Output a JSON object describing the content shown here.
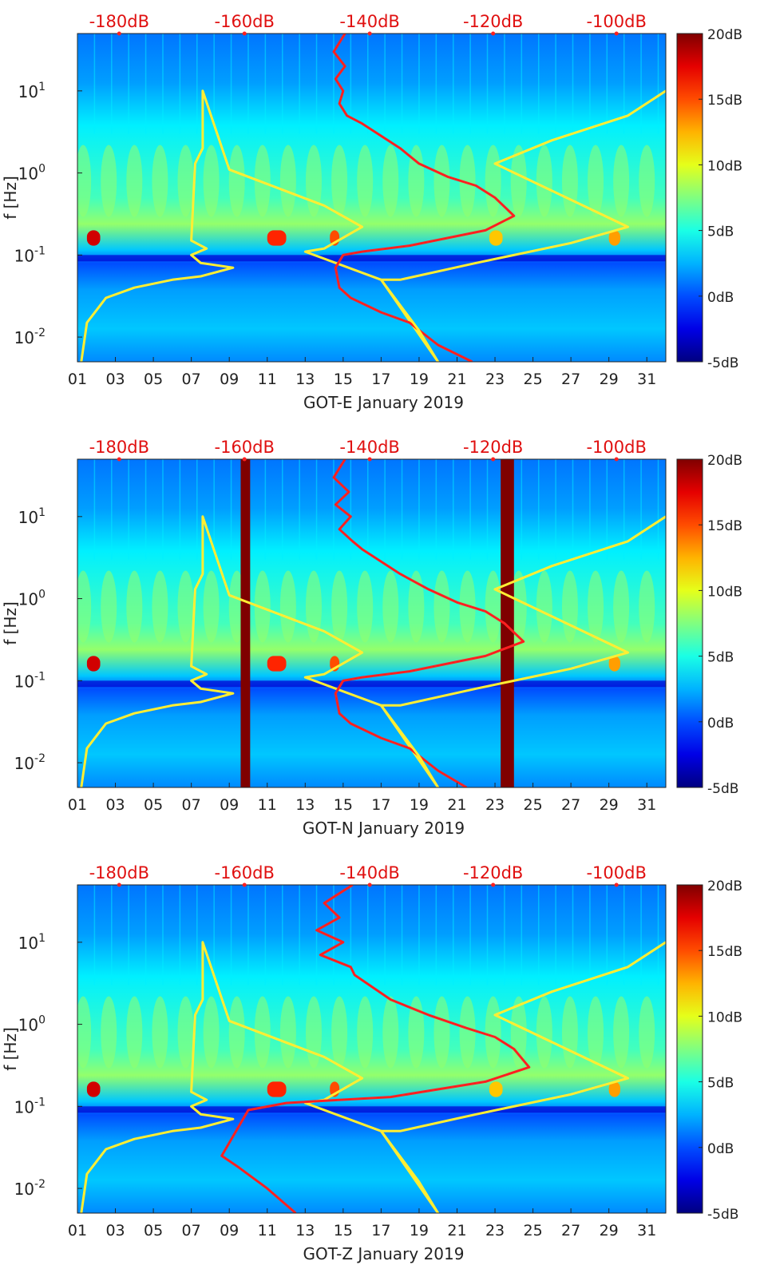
{
  "chart_data": [
    {
      "type": "heatmap",
      "title": "",
      "xlabel": "GOT-E January 2019",
      "ylabel": "f [Hz]",
      "x_ticks": [
        "01",
        "03",
        "05",
        "07",
        "09",
        "11",
        "13",
        "15",
        "17",
        "19",
        "21",
        "23",
        "25",
        "27",
        "29",
        "31"
      ],
      "xlim": [
        1,
        32
      ],
      "yscale": "log",
      "ylim": [
        0.005,
        50
      ],
      "y_ticks": [
        {
          "base": "10",
          "exp": "-2"
        },
        {
          "base": "10",
          "exp": "-1"
        },
        {
          "base": "10",
          "exp": "0"
        },
        {
          "base": "10",
          "exp": "1"
        }
      ],
      "y_tick_values": [
        0.01,
        0.1,
        1,
        10
      ],
      "colorbar_ticks": [
        "-5dB",
        "0dB",
        "5dB",
        "10dB",
        "15dB",
        "20dB"
      ],
      "colorbar_range": [
        -5,
        20
      ],
      "top_axis_labels": [
        "-180dB",
        "-160dB",
        "-140dB",
        "-120dB",
        "-100dB"
      ],
      "top_axis_day_positions": [
        3.2,
        9.8,
        16.4,
        22.9,
        29.4
      ],
      "heat_bands": [
        {
          "from": 1.5,
          "to": 2.2,
          "level": 18
        },
        {
          "from": 11.0,
          "to": 12.0,
          "level": 16
        },
        {
          "from": 14.3,
          "to": 14.8,
          "level": 15
        },
        {
          "from": 22.7,
          "to": 23.4,
          "level": 12
        },
        {
          "from": 29.0,
          "to": 29.6,
          "level": 13
        }
      ],
      "dropouts": [],
      "series": [
        {
          "color": "#ffee33",
          "x": [
            1.2,
            1.5,
            2.5,
            4,
            6,
            7.5,
            9.2,
            7.5,
            7,
            7.8,
            7,
            7.2,
            7.6,
            7.6,
            9,
            14,
            16,
            14,
            13,
            17,
            20
          ],
          "y": [
            0.005,
            0.015,
            0.03,
            0.04,
            0.05,
            0.055,
            0.07,
            0.08,
            0.1,
            0.12,
            0.15,
            1.3,
            2,
            10,
            1.1,
            0.4,
            0.22,
            0.12,
            0.11,
            0.05,
            0.005
          ]
        },
        {
          "color": "#ff2020",
          "x": [
            15.1,
            14.5,
            15.1,
            14.6,
            15,
            14.8,
            15.2,
            16,
            18,
            19,
            20.5,
            22,
            23,
            24,
            22.5,
            18.5,
            16,
            15,
            14.6,
            14.8,
            15.4,
            17,
            18.5,
            20,
            21.8
          ],
          "y": [
            50,
            30,
            20,
            14,
            10,
            7,
            5,
            4,
            2,
            1.3,
            0.9,
            0.7,
            0.5,
            0.3,
            0.2,
            0.13,
            0.11,
            0.1,
            0.07,
            0.04,
            0.03,
            0.02,
            0.015,
            0.008,
            0.005
          ]
        },
        {
          "color": "#ffee33",
          "x": [
            32,
            30,
            26,
            23,
            30,
            27,
            22,
            18,
            17,
            19,
            20
          ],
          "y": [
            10,
            5,
            2.5,
            1.3,
            0.22,
            0.14,
            0.08,
            0.05,
            0.05,
            0.012,
            0.005
          ]
        }
      ]
    },
    {
      "type": "heatmap",
      "title": "",
      "xlabel": "GOT-N January 2019",
      "ylabel": "f [Hz]",
      "x_ticks": [
        "01",
        "03",
        "05",
        "07",
        "09",
        "11",
        "13",
        "15",
        "17",
        "19",
        "21",
        "23",
        "25",
        "27",
        "29",
        "31"
      ],
      "xlim": [
        1,
        32
      ],
      "yscale": "log",
      "ylim": [
        0.005,
        50
      ],
      "y_ticks": [
        {
          "base": "10",
          "exp": "-2"
        },
        {
          "base": "10",
          "exp": "-1"
        },
        {
          "base": "10",
          "exp": "0"
        },
        {
          "base": "10",
          "exp": "1"
        }
      ],
      "y_tick_values": [
        0.01,
        0.1,
        1,
        10
      ],
      "colorbar_ticks": [
        "-5dB",
        "0dB",
        "5dB",
        "10dB",
        "15dB",
        "20dB"
      ],
      "colorbar_range": [
        -5,
        20
      ],
      "top_axis_labels": [
        "-180dB",
        "-160dB",
        "-140dB",
        "-120dB",
        "-100dB"
      ],
      "top_axis_day_positions": [
        3.2,
        9.8,
        16.4,
        22.9,
        29.4
      ],
      "heat_bands": [
        {
          "from": 1.5,
          "to": 2.2,
          "level": 18
        },
        {
          "from": 11.0,
          "to": 12.0,
          "level": 16
        },
        {
          "from": 14.3,
          "to": 14.8,
          "level": 15
        },
        {
          "from": 29.0,
          "to": 29.6,
          "level": 13
        }
      ],
      "dropouts": [
        {
          "from": 9.6,
          "to": 10.1
        },
        {
          "from": 23.3,
          "to": 24.0
        }
      ],
      "series": [
        {
          "color": "#ffee33",
          "x": [
            1.2,
            1.5,
            2.5,
            4,
            6,
            7.5,
            9.2,
            7.5,
            7,
            7.8,
            7,
            7.2,
            7.6,
            7.6,
            9,
            14,
            16,
            14,
            13,
            17,
            20
          ],
          "y": [
            0.005,
            0.015,
            0.03,
            0.04,
            0.05,
            0.055,
            0.07,
            0.08,
            0.1,
            0.12,
            0.15,
            1.3,
            2,
            10,
            1.1,
            0.4,
            0.22,
            0.12,
            0.11,
            0.05,
            0.005
          ]
        },
        {
          "color": "#ff2020",
          "x": [
            15.1,
            14.5,
            15.3,
            14.6,
            15.4,
            14.8,
            15.5,
            16,
            18,
            19.5,
            21,
            22.5,
            23.5,
            24.5,
            22.5,
            18.5,
            16,
            15,
            14.6,
            14.8,
            15.4,
            17,
            18.5,
            20,
            21.5
          ],
          "y": [
            50,
            30,
            20,
            14,
            10,
            7,
            5,
            4,
            2,
            1.3,
            0.9,
            0.7,
            0.5,
            0.3,
            0.2,
            0.13,
            0.11,
            0.1,
            0.07,
            0.04,
            0.03,
            0.02,
            0.015,
            0.008,
            0.005
          ]
        },
        {
          "color": "#ffee33",
          "x": [
            32,
            30,
            26,
            23,
            30,
            27,
            22,
            18,
            17,
            19,
            20
          ],
          "y": [
            10,
            5,
            2.5,
            1.3,
            0.22,
            0.14,
            0.08,
            0.05,
            0.05,
            0.012,
            0.005
          ]
        }
      ]
    },
    {
      "type": "heatmap",
      "title": "",
      "xlabel": "GOT-Z January 2019",
      "ylabel": "f [Hz]",
      "x_ticks": [
        "01",
        "03",
        "05",
        "07",
        "09",
        "11",
        "13",
        "15",
        "17",
        "19",
        "21",
        "23",
        "25",
        "27",
        "29",
        "31"
      ],
      "xlim": [
        1,
        32
      ],
      "yscale": "log",
      "ylim": [
        0.005,
        50
      ],
      "y_ticks": [
        {
          "base": "10",
          "exp": "-2"
        },
        {
          "base": "10",
          "exp": "-1"
        },
        {
          "base": "10",
          "exp": "0"
        },
        {
          "base": "10",
          "exp": "1"
        }
      ],
      "y_tick_values": [
        0.01,
        0.1,
        1,
        10
      ],
      "colorbar_ticks": [
        "-5dB",
        "0dB",
        "5dB",
        "10dB",
        "15dB",
        "20dB"
      ],
      "colorbar_range": [
        -5,
        20
      ],
      "top_axis_labels": [
        "-180dB",
        "-160dB",
        "-140dB",
        "-120dB",
        "-100dB"
      ],
      "top_axis_day_positions": [
        3.2,
        9.8,
        16.4,
        22.9,
        29.4
      ],
      "heat_bands": [
        {
          "from": 1.5,
          "to": 2.2,
          "level": 18
        },
        {
          "from": 11.0,
          "to": 12.0,
          "level": 16
        },
        {
          "from": 14.3,
          "to": 14.8,
          "level": 15
        },
        {
          "from": 22.7,
          "to": 23.4,
          "level": 12
        },
        {
          "from": 29.0,
          "to": 29.6,
          "level": 13
        }
      ],
      "dropouts": [],
      "series": [
        {
          "color": "#ffee33",
          "x": [
            1.2,
            1.5,
            2.5,
            4,
            6,
            7.5,
            9.2,
            7.5,
            7,
            7.8,
            7,
            7.2,
            7.6,
            7.6,
            9,
            14,
            16,
            14,
            13,
            17,
            20
          ],
          "y": [
            0.005,
            0.015,
            0.03,
            0.04,
            0.05,
            0.055,
            0.07,
            0.08,
            0.1,
            0.12,
            0.15,
            1.3,
            2,
            10,
            1.1,
            0.4,
            0.22,
            0.12,
            0.11,
            0.05,
            0.005
          ]
        },
        {
          "color": "#ff2020",
          "x": [
            15.5,
            14,
            14.8,
            13.6,
            15,
            13.8,
            15.4,
            15.6,
            17.5,
            19.5,
            21.5,
            23,
            24,
            24.8,
            22.5,
            17.5,
            12,
            10,
            8.6,
            9.5,
            11,
            12.5
          ],
          "y": [
            50,
            30,
            20,
            14,
            10,
            7,
            5,
            4,
            2,
            1.3,
            0.9,
            0.7,
            0.5,
            0.3,
            0.2,
            0.13,
            0.11,
            0.09,
            0.025,
            0.018,
            0.01,
            0.005
          ]
        },
        {
          "color": "#ffee33",
          "x": [
            32,
            30,
            26,
            23,
            30,
            27,
            22,
            18,
            17,
            19,
            20
          ],
          "y": [
            10,
            5,
            2.5,
            1.3,
            0.22,
            0.14,
            0.08,
            0.05,
            0.05,
            0.012,
            0.005
          ]
        }
      ]
    }
  ]
}
